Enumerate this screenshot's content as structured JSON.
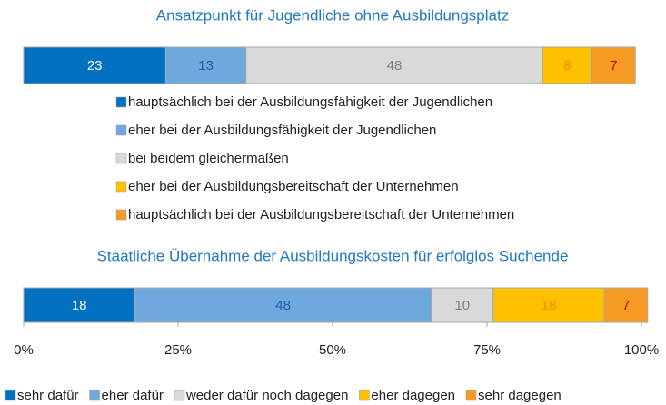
{
  "chart_data": [
    {
      "type": "stacked_bar_h",
      "title": "Ansatzpunkt für Jugendliche ohne Ausbildungsplatz",
      "xlim": [
        0,
        100
      ],
      "legend": "below-vertical",
      "series": [
        {
          "name": "hauptsächlich bei der Ausbildungsfähigkeit der Jugendlichen",
          "color": "#0070c0",
          "label_color": "#ffffff",
          "values": [
            23
          ]
        },
        {
          "name": "eher bei der Ausbildungsfähigkeit der Jugendlichen",
          "color": "#6fa8dc",
          "label_color": "#1f5fa8",
          "values": [
            13
          ]
        },
        {
          "name": "bei beidem gleichermaßen",
          "color": "#d9d9d9",
          "label_color": "#7f7f7f",
          "values": [
            48
          ]
        },
        {
          "name": "eher bei der Ausbildungsbereitschaft der Unternehmen",
          "color": "#ffc000",
          "label_color": "#f08c00",
          "values": [
            8
          ]
        },
        {
          "name": "hauptsächlich bei der Ausbildungsbereitschaft der Unternehmen",
          "color": "#f59b23",
          "label_color": "#c00000",
          "values": [
            7
          ]
        }
      ]
    },
    {
      "type": "stacked_bar_h",
      "title": "Staatliche Übernahme der Ausbildungskosten für erfolglos Suchende",
      "xlim": [
        0,
        100
      ],
      "xticks": [
        {
          "value": 0,
          "label": "0%"
        },
        {
          "value": 25,
          "label": "25%"
        },
        {
          "value": 50,
          "label": "50%"
        },
        {
          "value": 75,
          "label": "75%"
        },
        {
          "value": 100,
          "label": "100%"
        }
      ],
      "legend": "bottom-horizontal",
      "series": [
        {
          "name": "sehr dafür",
          "color": "#0070c0",
          "label_color": "#ffffff",
          "values": [
            18
          ]
        },
        {
          "name": "eher dafür",
          "color": "#6fa8dc",
          "label_color": "#1f5fa8",
          "values": [
            48
          ]
        },
        {
          "name": "weder dafür noch dagegen",
          "color": "#d9d9d9",
          "label_color": "#7f7f7f",
          "values": [
            10
          ]
        },
        {
          "name": "eher dagegen",
          "color": "#ffc000",
          "label_color": "#f08c00",
          "values": [
            18
          ]
        },
        {
          "name": "sehr dagegen",
          "color": "#f59b23",
          "label_color": "#c00000",
          "values": [
            7
          ]
        }
      ]
    }
  ]
}
